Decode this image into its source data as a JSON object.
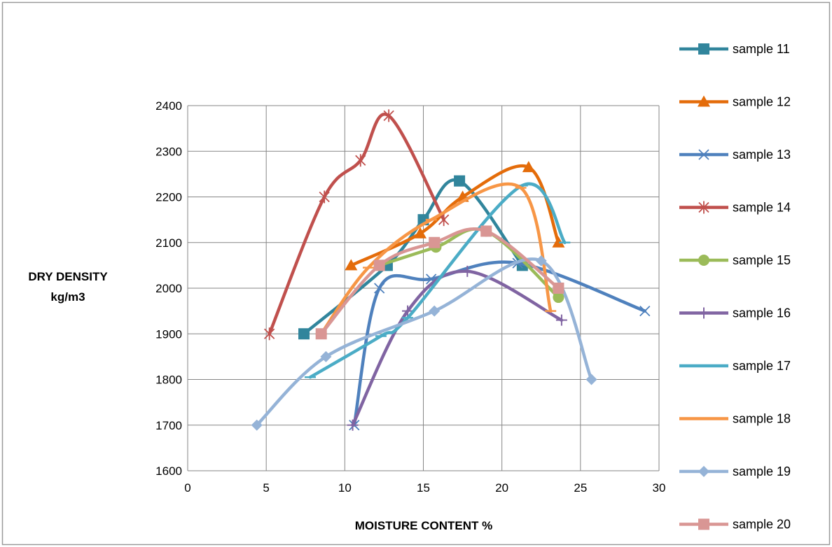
{
  "chart_data": {
    "type": "scatter",
    "title": "",
    "xlabel": "MOISTURE CONTENT %",
    "ylabel": [
      "DRY DENSITY",
      "kg/m3"
    ],
    "xlim": [
      0,
      30
    ],
    "ylim": [
      1600,
      2400
    ],
    "xticks": [
      0,
      5,
      10,
      15,
      20,
      25,
      30
    ],
    "yticks": [
      1600,
      1700,
      1800,
      1900,
      2000,
      2100,
      2200,
      2300,
      2400
    ],
    "grid": true,
    "smooth_lines": true,
    "legend_position": "right",
    "series": [
      {
        "name": "sample 11",
        "color": "#31859C",
        "marker": "square",
        "points": [
          [
            7.4,
            1900
          ],
          [
            12.7,
            2050
          ],
          [
            15.0,
            2150
          ],
          [
            17.3,
            2235
          ],
          [
            21.3,
            2050
          ]
        ]
      },
      {
        "name": "sample 12",
        "color": "#E46C0A",
        "marker": "triangle",
        "points": [
          [
            10.4,
            2050
          ],
          [
            14.8,
            2120
          ],
          [
            17.5,
            2200
          ],
          [
            21.7,
            2265
          ],
          [
            23.6,
            2100
          ]
        ]
      },
      {
        "name": "sample 13",
        "color": "#4F81BD",
        "marker": "x",
        "points": [
          [
            10.6,
            1700
          ],
          [
            12.2,
            2000
          ],
          [
            15.5,
            2020
          ],
          [
            21.0,
            2055
          ],
          [
            29.1,
            1950
          ]
        ]
      },
      {
        "name": "sample 14",
        "color": "#C0504D",
        "marker": "star",
        "points": [
          [
            5.2,
            1900
          ],
          [
            8.7,
            2200
          ],
          [
            11.0,
            2280
          ],
          [
            12.8,
            2378
          ],
          [
            16.3,
            2150
          ]
        ]
      },
      {
        "name": "sample 15",
        "color": "#9BBB59",
        "marker": "circle",
        "points": [
          [
            12.2,
            2050
          ],
          [
            15.8,
            2090
          ],
          [
            19.0,
            2125
          ],
          [
            23.6,
            1980
          ]
        ]
      },
      {
        "name": "sample 16",
        "color": "#8064A2",
        "marker": "plus",
        "points": [
          [
            10.5,
            1700
          ],
          [
            14.0,
            1950
          ],
          [
            17.8,
            2037
          ],
          [
            23.8,
            1930
          ]
        ]
      },
      {
        "name": "sample 17",
        "color": "#4BACC6",
        "marker": "dash",
        "points": [
          [
            7.8,
            1805
          ],
          [
            12.3,
            1895
          ],
          [
            14.0,
            1935
          ],
          [
            21.3,
            2225
          ],
          [
            24.0,
            2100
          ]
        ]
      },
      {
        "name": "sample 18",
        "color": "#F79646",
        "marker": "dash",
        "points": [
          [
            8.5,
            1900
          ],
          [
            11.5,
            2045
          ],
          [
            15.5,
            2150
          ],
          [
            21.2,
            2220
          ],
          [
            23.1,
            1950
          ]
        ]
      },
      {
        "name": "sample 19",
        "color": "#95B3D7",
        "marker": "diamond",
        "points": [
          [
            4.4,
            1700
          ],
          [
            8.8,
            1850
          ],
          [
            15.7,
            1950
          ],
          [
            22.5,
            2060
          ],
          [
            25.7,
            1800
          ]
        ]
      },
      {
        "name": "sample 20",
        "color": "#D99694",
        "marker": "square",
        "points": [
          [
            8.5,
            1900
          ],
          [
            12.2,
            2050
          ],
          [
            15.7,
            2100
          ],
          [
            19.0,
            2125
          ],
          [
            23.6,
            2000
          ]
        ]
      }
    ]
  }
}
